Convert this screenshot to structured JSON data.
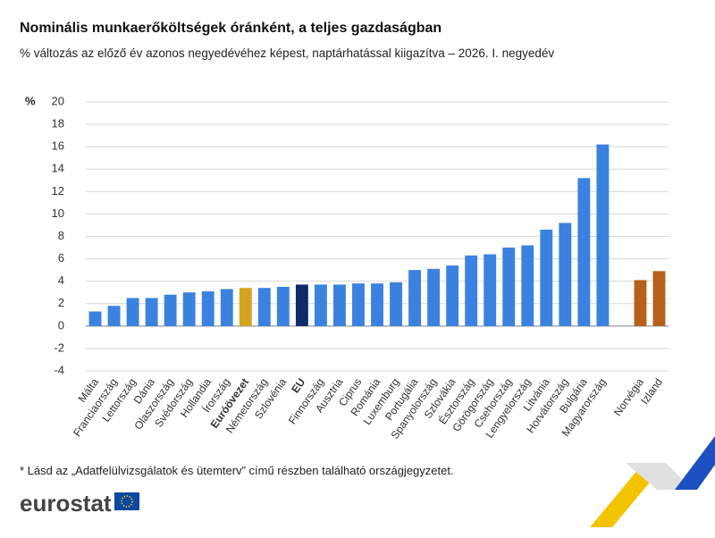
{
  "chart_data": {
    "type": "bar",
    "title": "Nominális munkaerőköltségek óránként, a teljes gazdaságban",
    "subtitle": "% változás az előző év azonos negyedévéhez képest, naptárhatással kiigazítva – 2026. I. negyedév",
    "y_label": "%",
    "categories": [
      "Málta",
      "Franciaország",
      "Lettország",
      "Dánia",
      "Olaszország",
      "Svédország",
      "Hollandia",
      "Írország",
      "Euróövezet",
      "Németország",
      "Szlovénia",
      "EU",
      "Finnország",
      "Ausztria",
      "Ciprus",
      "Románia",
      "Luxemburg",
      "Portugália",
      "Spanyolország",
      "Szlovákia",
      "Észtország",
      "Görögország",
      "Csehország",
      "Lengyelország",
      "Litvánia",
      "Horvátország",
      "Bulgária",
      "Magyarország",
      null,
      "Norvégia",
      "Izland"
    ],
    "values": [
      1.3,
      1.8,
      2.5,
      2.5,
      2.8,
      3.0,
      3.1,
      3.3,
      3.4,
      3.4,
      3.5,
      3.7,
      3.7,
      3.7,
      3.8,
      3.8,
      3.9,
      5.0,
      5.1,
      5.4,
      6.3,
      6.4,
      7.0,
      7.2,
      8.6,
      9.2,
      13.2,
      16.2,
      null,
      4.1,
      4.9
    ],
    "colors": [
      "#3b82e0",
      "#3b82e0",
      "#3b82e0",
      "#3b82e0",
      "#3b82e0",
      "#3b82e0",
      "#3b82e0",
      "#3b82e0",
      "#d4a51c",
      "#3b82e0",
      "#3b82e0",
      "#0d2a6b",
      "#3b82e0",
      "#3b82e0",
      "#3b82e0",
      "#3b82e0",
      "#3b82e0",
      "#3b82e0",
      "#3b82e0",
      "#3b82e0",
      "#3b82e0",
      "#3b82e0",
      "#3b82e0",
      "#3b82e0",
      "#3b82e0",
      "#3b82e0",
      "#3b82e0",
      "#3b82e0",
      null,
      "#b5611c",
      "#b5611c"
    ],
    "ylim": [
      -4,
      20
    ],
    "yticks": [
      -4,
      -2,
      0,
      2,
      4,
      6,
      8,
      10,
      12,
      14,
      16,
      18,
      20
    ],
    "grid": true,
    "footnote": "* Lásd az „Adatfelülvizsgálatok és ütemterv” című részben található országjegyzetet.",
    "logo": "eurostat"
  }
}
